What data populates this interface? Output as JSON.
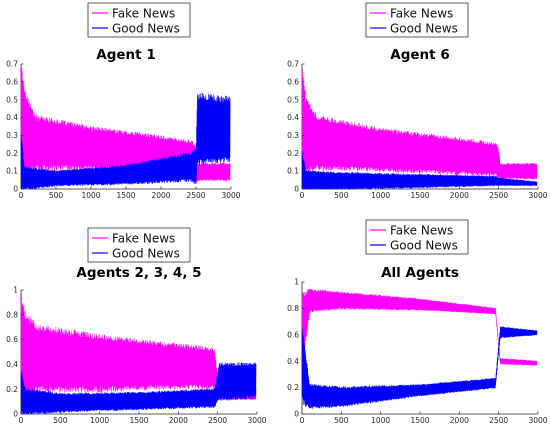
{
  "legend": [
    "Fake News",
    "Good News"
  ],
  "colors": {
    "fake": "#ff00ff",
    "good": "#0000ff",
    "axis": "#262626"
  },
  "chart_data": [
    {
      "type": "line",
      "title": "Agent 1",
      "xlim": [
        0,
        3000
      ],
      "ylim": [
        0,
        0.7
      ],
      "xticks": [
        0,
        500,
        1000,
        1500,
        2000,
        2500,
        3000
      ],
      "yticks": [
        0,
        0.1,
        0.2,
        0.3,
        0.4,
        0.5,
        0.6,
        0.7
      ],
      "series": [
        {
          "name": "Fake News",
          "envelope": [
            {
              "x": 0,
              "low": 0.02,
              "high": 0.7
            },
            {
              "x": 50,
              "low": 0.1,
              "high": 0.55
            },
            {
              "x": 200,
              "low": 0.12,
              "high": 0.4
            },
            {
              "x": 1000,
              "low": 0.12,
              "high": 0.34
            },
            {
              "x": 2000,
              "low": 0.1,
              "high": 0.29
            },
            {
              "x": 2440,
              "low": 0.08,
              "high": 0.26
            },
            {
              "x": 2500,
              "low": 0.03,
              "high": 0.24
            },
            {
              "x": 2520,
              "low": 0.05,
              "high": 0.14
            },
            {
              "x": 2990,
              "low": 0.05,
              "high": 0.14
            }
          ]
        },
        {
          "name": "Good News",
          "envelope": [
            {
              "x": 0,
              "low": 0.0,
              "high": 0.32
            },
            {
              "x": 50,
              "low": 0.0,
              "high": 0.12
            },
            {
              "x": 500,
              "low": 0.02,
              "high": 0.1
            },
            {
              "x": 1500,
              "low": 0.03,
              "high": 0.13
            },
            {
              "x": 2440,
              "low": 0.05,
              "high": 0.2
            },
            {
              "x": 2500,
              "low": 0.03,
              "high": 0.22
            },
            {
              "x": 2520,
              "low": 0.15,
              "high": 0.52
            },
            {
              "x": 2990,
              "low": 0.16,
              "high": 0.5
            }
          ]
        }
      ]
    },
    {
      "type": "line",
      "title": "Agent 6",
      "xlim": [
        0,
        3000
      ],
      "ylim": [
        0,
        0.7
      ],
      "xticks": [
        0,
        500,
        1000,
        1500,
        2000,
        2500,
        3000
      ],
      "yticks": [
        0,
        0.1,
        0.2,
        0.3,
        0.4,
        0.5,
        0.6,
        0.7
      ],
      "series": [
        {
          "name": "Fake News",
          "envelope": [
            {
              "x": 0,
              "low": 0.05,
              "high": 0.68
            },
            {
              "x": 50,
              "low": 0.1,
              "high": 0.5
            },
            {
              "x": 200,
              "low": 0.12,
              "high": 0.4
            },
            {
              "x": 1000,
              "low": 0.11,
              "high": 0.33
            },
            {
              "x": 2000,
              "low": 0.09,
              "high": 0.28
            },
            {
              "x": 2460,
              "low": 0.08,
              "high": 0.25
            },
            {
              "x": 2500,
              "low": 0.07,
              "high": 0.22
            },
            {
              "x": 2520,
              "low": 0.06,
              "high": 0.14
            },
            {
              "x": 2990,
              "low": 0.06,
              "high": 0.14
            }
          ]
        },
        {
          "name": "Good News",
          "envelope": [
            {
              "x": 0,
              "low": 0.0,
              "high": 0.22
            },
            {
              "x": 50,
              "low": 0.0,
              "high": 0.1
            },
            {
              "x": 500,
              "low": 0.0,
              "high": 0.09
            },
            {
              "x": 1500,
              "low": 0.01,
              "high": 0.08
            },
            {
              "x": 2460,
              "low": 0.02,
              "high": 0.07
            },
            {
              "x": 2520,
              "low": 0.02,
              "high": 0.06
            },
            {
              "x": 2990,
              "low": 0.02,
              "high": 0.04
            }
          ]
        }
      ]
    },
    {
      "type": "line",
      "title": "Agents 2, 3, 4, 5",
      "xlim": [
        0,
        3000
      ],
      "ylim": [
        0,
        1
      ],
      "xticks": [
        0,
        500,
        1000,
        1500,
        2000,
        2500,
        3000
      ],
      "yticks": [
        0,
        0.2,
        0.4,
        0.6,
        0.8,
        1
      ],
      "series": [
        {
          "name": "Fake News",
          "envelope": [
            {
              "x": 0,
              "low": 0.05,
              "high": 0.95
            },
            {
              "x": 50,
              "low": 0.15,
              "high": 0.8
            },
            {
              "x": 200,
              "low": 0.2,
              "high": 0.7
            },
            {
              "x": 1000,
              "low": 0.2,
              "high": 0.62
            },
            {
              "x": 2000,
              "low": 0.22,
              "high": 0.55
            },
            {
              "x": 2460,
              "low": 0.22,
              "high": 0.52
            },
            {
              "x": 2520,
              "low": 0.12,
              "high": 0.2
            },
            {
              "x": 2990,
              "low": 0.12,
              "high": 0.2
            }
          ]
        },
        {
          "name": "Good News",
          "envelope": [
            {
              "x": 0,
              "low": 0.0,
              "high": 0.35
            },
            {
              "x": 50,
              "low": 0.0,
              "high": 0.2
            },
            {
              "x": 500,
              "low": 0.02,
              "high": 0.16
            },
            {
              "x": 1500,
              "low": 0.04,
              "high": 0.17
            },
            {
              "x": 2460,
              "low": 0.06,
              "high": 0.2
            },
            {
              "x": 2520,
              "low": 0.12,
              "high": 0.4
            },
            {
              "x": 2990,
              "low": 0.14,
              "high": 0.4
            }
          ]
        }
      ]
    },
    {
      "type": "line",
      "title": "All Agents",
      "xlim": [
        0,
        3000
      ],
      "ylim": [
        0,
        1
      ],
      "xticks": [
        0,
        500,
        1000,
        1500,
        2000,
        2500,
        3000
      ],
      "yticks": [
        0,
        0.2,
        0.4,
        0.6,
        0.8,
        1
      ],
      "series": [
        {
          "name": "Fake News",
          "envelope": [
            {
              "x": 0,
              "low": 0.35,
              "high": 0.9
            },
            {
              "x": 100,
              "low": 0.78,
              "high": 0.94
            },
            {
              "x": 500,
              "low": 0.8,
              "high": 0.92
            },
            {
              "x": 1500,
              "low": 0.79,
              "high": 0.87
            },
            {
              "x": 2460,
              "low": 0.76,
              "high": 0.8
            },
            {
              "x": 2520,
              "low": 0.38,
              "high": 0.42
            },
            {
              "x": 2990,
              "low": 0.37,
              "high": 0.4
            }
          ]
        },
        {
          "name": "Good News",
          "envelope": [
            {
              "x": 0,
              "low": 0.1,
              "high": 0.65
            },
            {
              "x": 100,
              "low": 0.05,
              "high": 0.22
            },
            {
              "x": 500,
              "low": 0.06,
              "high": 0.2
            },
            {
              "x": 1500,
              "low": 0.14,
              "high": 0.22
            },
            {
              "x": 2460,
              "low": 0.2,
              "high": 0.27
            },
            {
              "x": 2520,
              "low": 0.58,
              "high": 0.66
            },
            {
              "x": 2990,
              "low": 0.6,
              "high": 0.63
            }
          ]
        }
      ]
    }
  ]
}
